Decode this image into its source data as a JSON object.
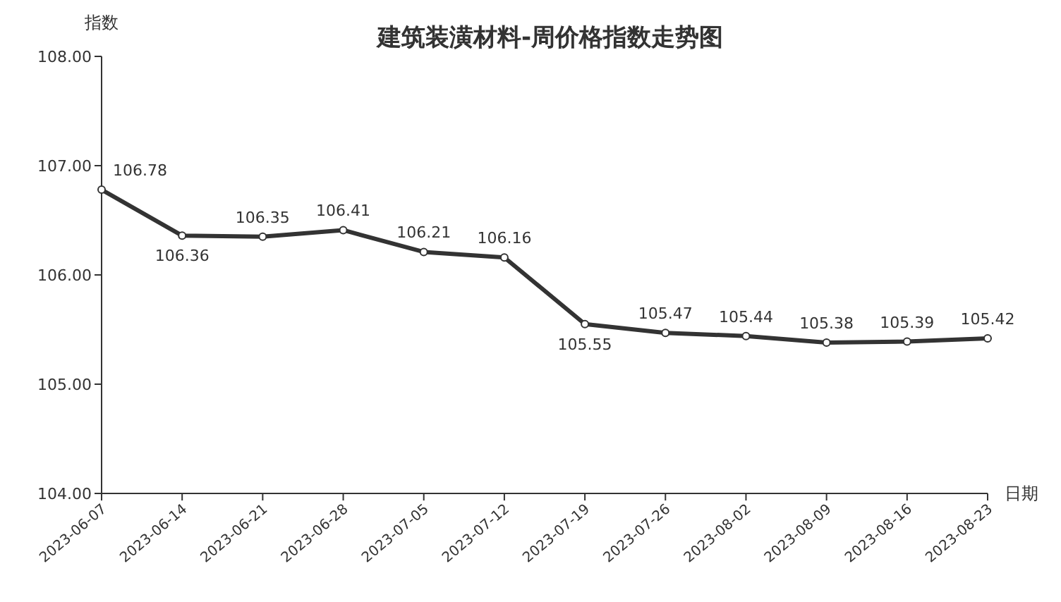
{
  "chart_data": {
    "type": "line",
    "title": "建筑装潢材料-周价格指数走势图",
    "ylabel": "指数",
    "xlabel": "日期",
    "categories": [
      "2023-06-07",
      "2023-06-14",
      "2023-06-21",
      "2023-06-28",
      "2023-07-05",
      "2023-07-12",
      "2023-07-19",
      "2023-07-26",
      "2023-08-02",
      "2023-08-09",
      "2023-08-16",
      "2023-08-23"
    ],
    "series": [
      {
        "color": "#333333",
        "values": [
          106.78,
          106.36,
          106.35,
          106.41,
          106.21,
          106.16,
          105.55,
          105.47,
          105.44,
          105.38,
          105.39,
          105.42
        ]
      }
    ],
    "ylim": [
      104,
      108
    ],
    "yticks": [
      {
        "value": 104,
        "label": "104.00"
      },
      {
        "value": 105,
        "label": "105.00"
      },
      {
        "value": 106,
        "label": "106.00"
      },
      {
        "value": 107,
        "label": "107.00"
      },
      {
        "value": 108,
        "label": "108.00"
      }
    ],
    "marker": "circle",
    "line_style": "solid",
    "data_labels": true
  }
}
